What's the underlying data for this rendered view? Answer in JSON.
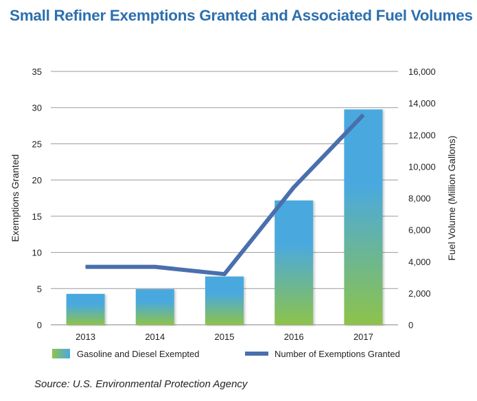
{
  "title": "Small Refiner Exemptions Granted and Associated Fuel Volumes",
  "source": "Source: U.S. Environmental Protection Agency",
  "colors": {
    "bar_top": "#4aa9df",
    "bar_bottom": "#8dc34a",
    "line": "#4a6fad",
    "grid": "#999999",
    "title": "#2c6fae"
  },
  "chart_data": {
    "type": "bar",
    "categories": [
      "2013",
      "2014",
      "2015",
      "2016",
      "2017"
    ],
    "ylabel": "Exemptions Granted",
    "y2label": "Fuel Volume (Million Gallons)",
    "ylim": [
      0,
      35
    ],
    "y2lim": [
      0,
      16000
    ],
    "yticks": [
      "0",
      "5",
      "10",
      "15",
      "20",
      "25",
      "30",
      "35"
    ],
    "y2ticks": [
      "0",
      "2,000",
      "4,000",
      "6,000",
      "8,000",
      "10,000",
      "12,000",
      "14,000",
      "16,000"
    ],
    "grid": true,
    "legend_position": "bottom",
    "series": [
      {
        "name": "Gasoline and Diesel Exempted",
        "type": "bar",
        "axis": "right",
        "values": [
          1950,
          2250,
          3050,
          7850,
          13600
        ]
      },
      {
        "name": "Number of Exemptions Granted",
        "type": "line",
        "axis": "left",
        "values": [
          8,
          8,
          7,
          19,
          29
        ]
      }
    ]
  }
}
